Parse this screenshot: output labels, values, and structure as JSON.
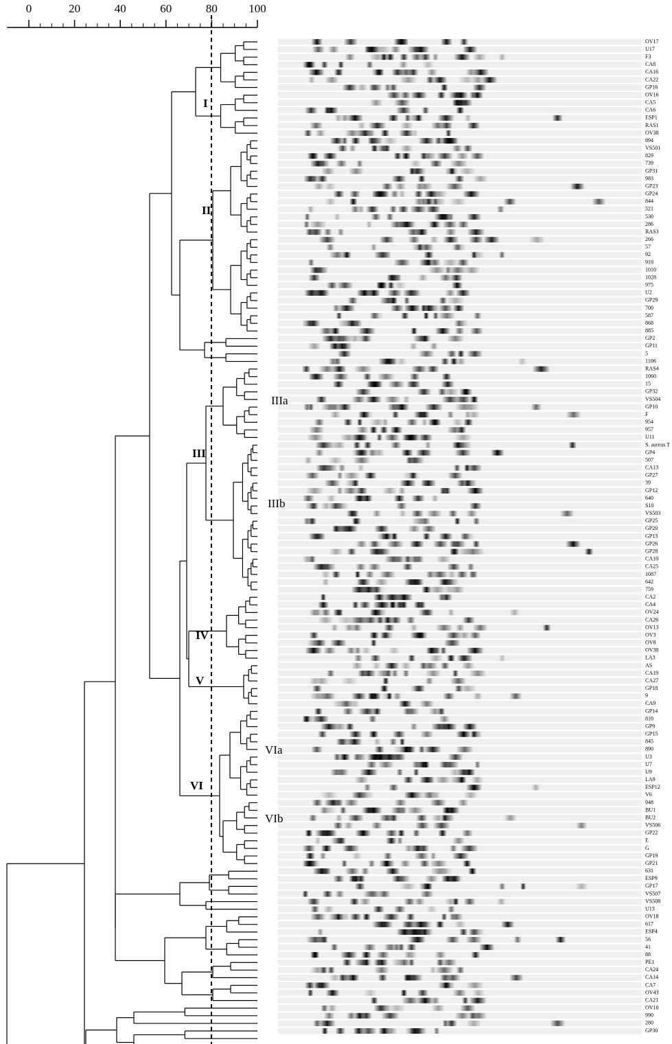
{
  "scale": {
    "ticks": [
      0,
      20,
      40,
      60,
      80,
      100
    ]
  },
  "clusters": [
    "I",
    "II",
    "III",
    "IIIa",
    "IIIb",
    "IV",
    "V",
    "VI",
    "VIa",
    "VIb"
  ],
  "lanes": [
    "OV17",
    "U17",
    "F3",
    "CA8",
    "CA16",
    "CA22",
    "GP16",
    "OV16",
    "CA5",
    "CA6",
    "ESP1",
    "RAS1",
    "OV38",
    "894",
    "VS501",
    "829",
    "739",
    "GP31",
    "983",
    "GP23",
    "GP24",
    "844",
    "521",
    "530",
    "286",
    "RAS3",
    "266",
    "57",
    "92",
    "919",
    "1010",
    "1028",
    "975",
    "U2",
    "GP29",
    "700",
    "587",
    "868",
    "885",
    "GP2",
    "GP11",
    "5",
    "1106",
    "RAS4",
    "1060",
    "15",
    "GP32",
    "VS504",
    "GP10",
    "F",
    "954",
    "957",
    "U11",
    "S. aureus T",
    "GP4",
    "507",
    "CA13",
    "GP27",
    "39",
    "GP12",
    "640",
    "S10",
    "VS503",
    "GP25",
    "GP20",
    "GP13",
    "GP26",
    "GP28",
    "CA10",
    "CA25",
    "1087",
    "642",
    "759",
    "CA2",
    "CA4",
    "OV24",
    "CA26",
    "OV13",
    "OV3",
    "OV8",
    "OV30",
    "LA3",
    "AS",
    "CA19",
    "CA27",
    "GP18",
    "9",
    "CA9",
    "GP14",
    "810",
    "GP9",
    "GP15",
    "845",
    "890",
    "U3",
    "U7",
    "U9",
    "LA9",
    "ESP12",
    "V6",
    "948",
    "BU1",
    "BU2",
    "VS506",
    "GP22",
    "E",
    "G",
    "GP19",
    "GP21",
    "631",
    "ESP9",
    "GP17",
    "VS507",
    "VS508",
    "U13",
    "OV18",
    "617",
    "ESP4",
    "56",
    "41",
    "88",
    "PE1",
    "CA24",
    "CA14",
    "CA7",
    "OV43",
    "CA21",
    "OV10",
    "990",
    "280",
    "GP30"
  ]
}
